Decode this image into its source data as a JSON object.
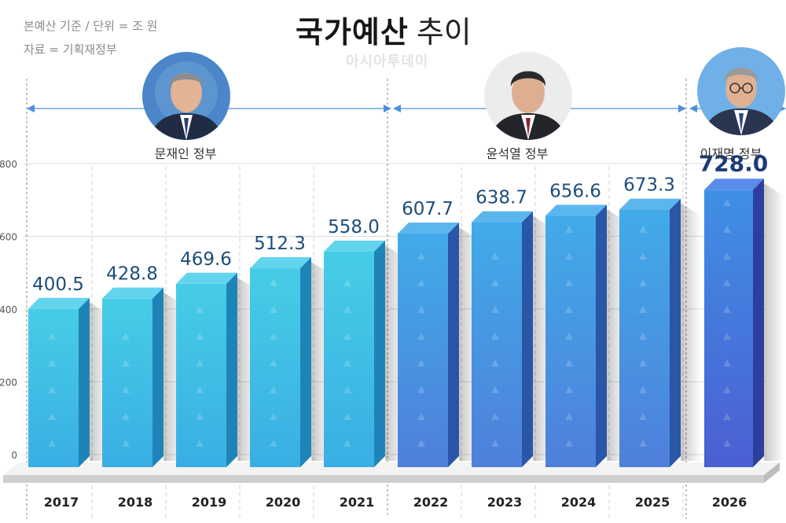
{
  "title": {
    "bold": "국가예산",
    "light": "추이"
  },
  "notes": {
    "basis": "본예산 기준  /  단위 = 조 원",
    "source": "자료 = 기획재정부"
  },
  "watermark": "아시아투데이",
  "governments": [
    {
      "name": "문재인 정부",
      "start": "2017",
      "end": "2021"
    },
    {
      "name": "윤석열 정부",
      "start": "2022",
      "end": "2025"
    },
    {
      "name": "이재명 정부",
      "start": "2026",
      "end": "2026"
    }
  ],
  "chart_data": {
    "type": "bar",
    "categories": [
      "2017",
      "2018",
      "2019",
      "2020",
      "2021",
      "2022",
      "2023",
      "2024",
      "2025",
      "2026"
    ],
    "values": [
      400.5,
      428.8,
      469.6,
      512.3,
      558.0,
      607.7,
      638.7,
      656.6,
      673.3,
      728.0
    ],
    "data_labels": [
      "400.5",
      "428.8",
      "469.6",
      "512.3",
      "558.0",
      "607.7",
      "638.7",
      "656.6",
      "673.3",
      "728.0"
    ],
    "y_ticks": [
      0,
      200,
      400,
      600,
      800
    ],
    "ylim": [
      0,
      800
    ],
    "grid": true,
    "colors": {
      "moon": "#43c4e6",
      "yoon": "#4a92e2",
      "lee": "#3c68d8",
      "label": "#1c4e7a"
    }
  }
}
